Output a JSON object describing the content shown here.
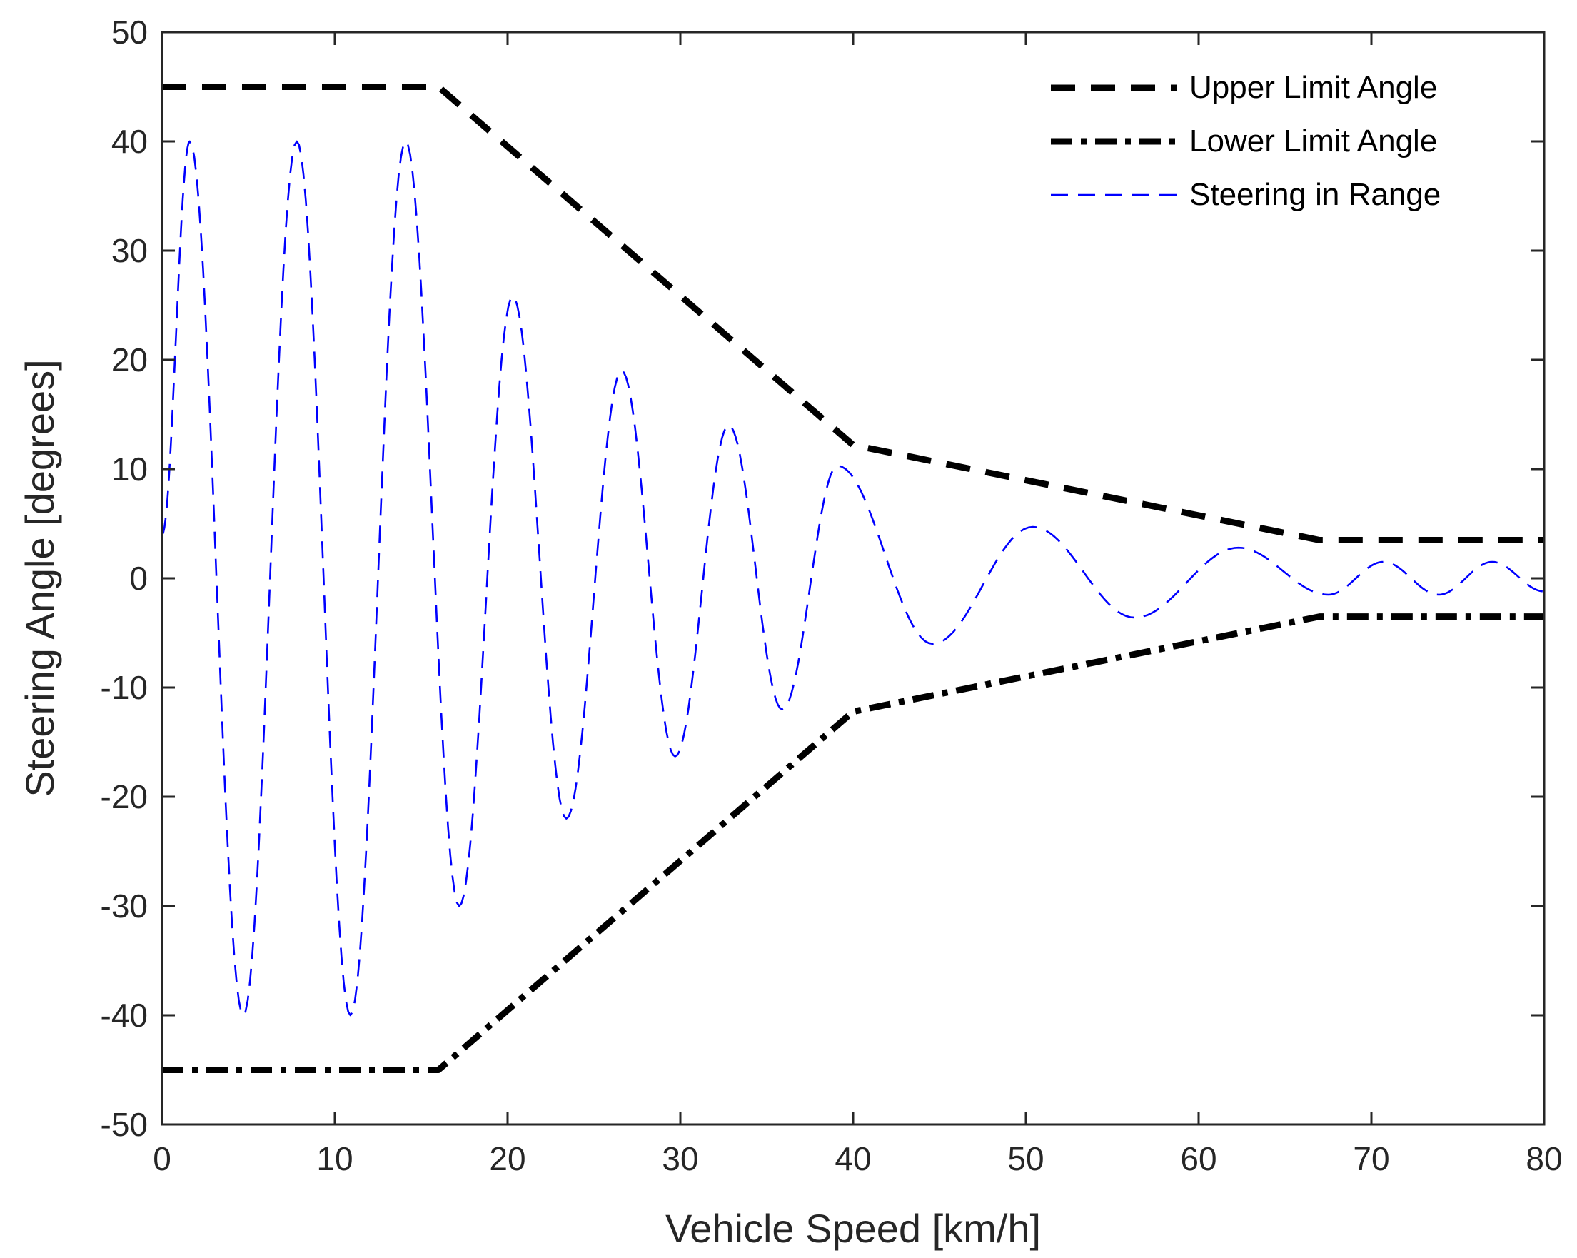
{
  "chart_data": {
    "type": "line",
    "title": "",
    "xlabel": "Vehicle Speed [km/h]",
    "ylabel": "Steering Angle [degrees]",
    "xlim": [
      0,
      80
    ],
    "ylim": [
      -50,
      50
    ],
    "xticks": [
      0,
      10,
      20,
      30,
      40,
      50,
      60,
      70,
      80
    ],
    "yticks": [
      -50,
      -40,
      -30,
      -20,
      -10,
      0,
      10,
      20,
      30,
      40,
      50
    ],
    "grid": false,
    "legend_position": "top-right",
    "series": [
      {
        "name": "Upper Limit Angle",
        "style": "dashed",
        "color": "#000000",
        "x": [
          0,
          16,
          40,
          67,
          80
        ],
        "y": [
          45,
          45,
          12.2,
          3.5,
          3.5
        ]
      },
      {
        "name": "Lower Limit Angle",
        "style": "dash-dot",
        "color": "#000000",
        "x": [
          0,
          16,
          40,
          67,
          80
        ],
        "y": [
          -45,
          -45,
          -12.2,
          -3.5,
          -3.5
        ]
      },
      {
        "name": "Steering in Range",
        "style": "dashed-thin",
        "color": "#0000ff",
        "x": [
          0,
          1.6,
          4.7,
          7.8,
          10.9,
          14.1,
          17.2,
          20.3,
          23.4,
          26.6,
          29.7,
          32.8,
          35.9,
          39.1,
          44.6,
          50.4,
          56.3,
          62.3,
          67.5,
          70.7,
          73.9,
          77.0,
          80
        ],
        "y": [
          4,
          40,
          -40,
          40,
          -40,
          40,
          -30,
          25.8,
          -22,
          19,
          -16.3,
          14,
          -12,
          10.3,
          -6,
          4.7,
          -3.6,
          2.8,
          -1.5,
          1.5,
          -1.5,
          1.5,
          -1.2
        ]
      }
    ]
  }
}
